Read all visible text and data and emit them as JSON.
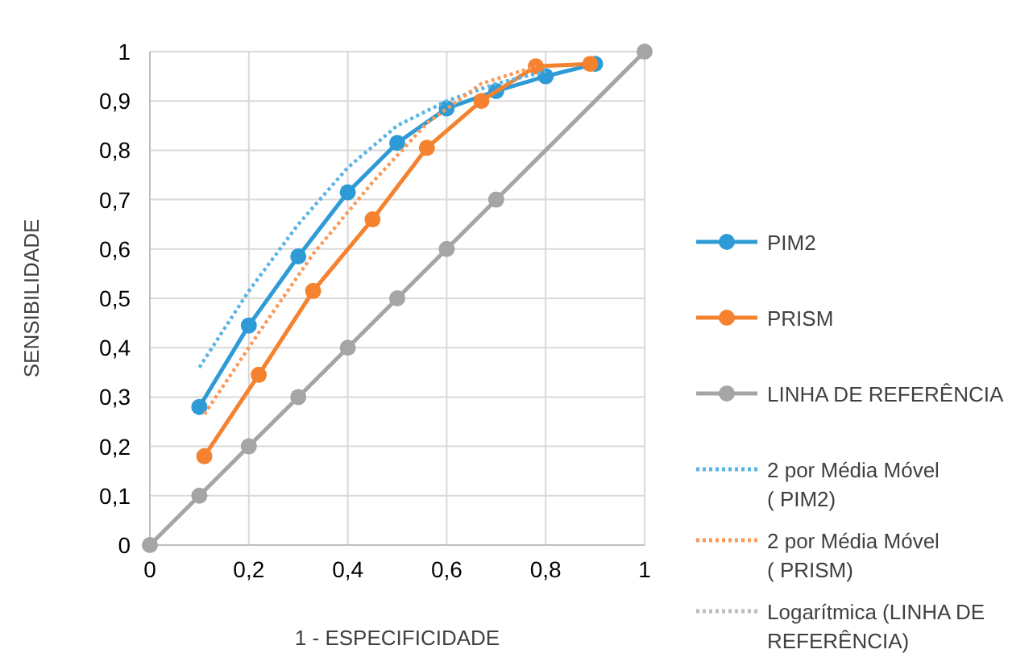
{
  "chart_data": {
    "type": "line",
    "xlabel": "1 - ESPECIFICIDADE",
    "ylabel": "SENSIBILIDADE",
    "xlim": [
      0,
      1
    ],
    "xticks": [
      0,
      {
        "value": 0.2,
        "label": "0,2"
      },
      {
        "value": 0.4,
        "label": "0,4"
      },
      {
        "value": 0.6,
        "label": "0,6"
      },
      {
        "value": 0.8,
        "label": "0,8"
      },
      1
    ],
    "ylim": [
      0,
      1
    ],
    "yticks": [
      0,
      {
        "value": 0.1,
        "label": "0,1"
      },
      {
        "value": 0.2,
        "label": "0,2"
      },
      {
        "value": 0.3,
        "label": "0,3"
      },
      {
        "value": 0.4,
        "label": "0,4"
      },
      {
        "value": 0.5,
        "label": "0,5"
      },
      {
        "value": 0.6,
        "label": "0,6"
      },
      {
        "value": 0.7,
        "label": "0,7"
      },
      {
        "value": 0.8,
        "label": "0,8"
      },
      {
        "value": 0.9,
        "label": "0,9"
      },
      1
    ],
    "grid": true,
    "legend": "right",
    "marker": "circle",
    "series": [
      {
        "name": "PIM2",
        "color": "#2e9bd6",
        "x": [
          0.1,
          0.2,
          0.3,
          0.4,
          0.5,
          0.6,
          0.7,
          0.8,
          0.9
        ],
        "values": [
          0.28,
          0.445,
          0.585,
          0.715,
          0.815,
          0.885,
          0.92,
          0.95,
          0.975
        ]
      },
      {
        "name": "PRISM",
        "color": "#f5822e",
        "x": [
          0.11,
          0.22,
          0.33,
          0.45,
          0.56,
          0.67,
          0.78,
          0.89
        ],
        "values": [
          0.18,
          0.345,
          0.515,
          0.66,
          0.805,
          0.9,
          0.97,
          0.975
        ]
      },
      {
        "name": "LINHA DE REFERÊNCIA",
        "color": "#a5a5a5",
        "x": [
          0,
          0.1,
          0.2,
          0.3,
          0.4,
          0.5,
          0.6,
          0.7,
          1
        ],
        "values": [
          0,
          0.1,
          0.2,
          0.3,
          0.4,
          0.5,
          0.6,
          0.7,
          1
        ]
      },
      {
        "name": "2 por Média Móvel ( PIM2)",
        "color": "#5ab4e6",
        "marker": "none",
        "line_style": "dotted",
        "x": [
          0.1,
          0.2,
          0.3,
          0.4,
          0.5,
          0.6,
          0.7,
          0.8
        ],
        "values": [
          0.36,
          0.515,
          0.65,
          0.765,
          0.85,
          0.9,
          0.935,
          0.96
        ]
      },
      {
        "name": "2 por Média Móvel ( PRISM)",
        "color": "#f89a5a",
        "marker": "none",
        "line_style": "dotted",
        "x": [
          0.11,
          0.22,
          0.33,
          0.45,
          0.56,
          0.67,
          0.78
        ],
        "values": [
          0.265,
          0.43,
          0.59,
          0.735,
          0.855,
          0.935,
          0.97
        ]
      },
      {
        "name": "Logarítmica (LINHA DE REFERÊNCIA)",
        "color": "#bdbdbd",
        "marker": "none",
        "line_style": "dotted"
      }
    ]
  }
}
